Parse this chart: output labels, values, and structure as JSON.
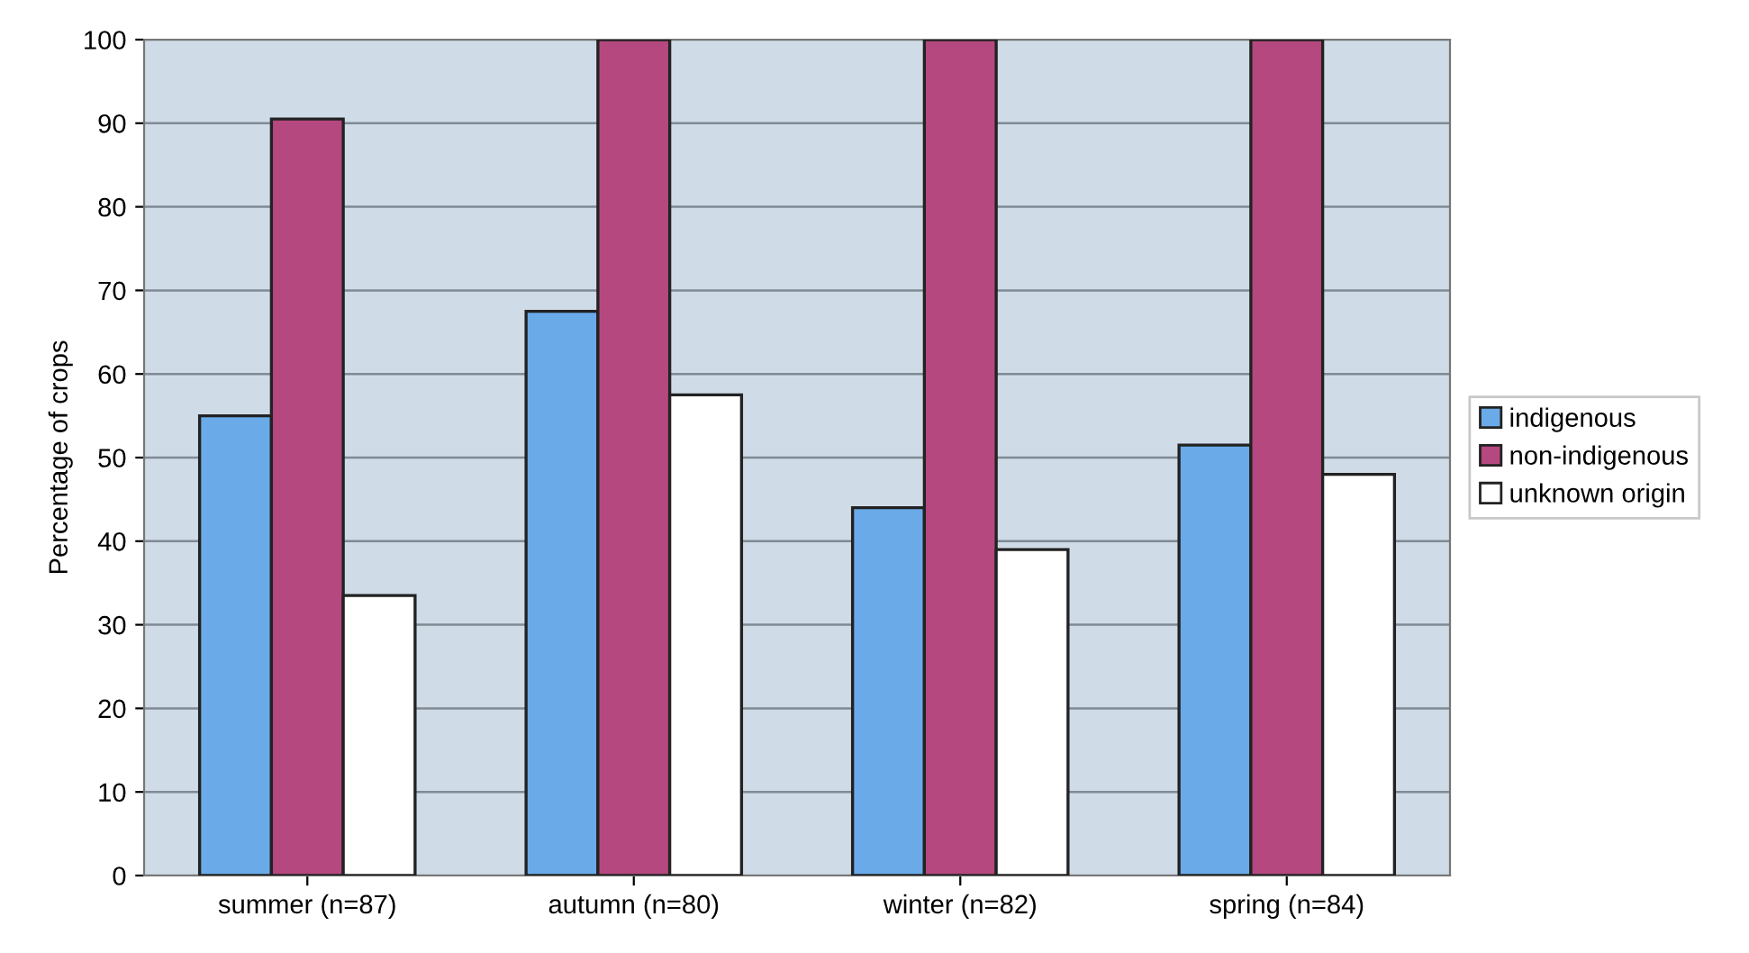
{
  "chart_data": {
    "type": "bar",
    "ylabel": "Percentage of crops",
    "categories": [
      "summer (n=87)",
      "autumn (n=80)",
      "winter (n=82)",
      "spring (n=84)"
    ],
    "series": [
      {
        "name": "indigenous",
        "color": "#6aaae8",
        "values": [
          55,
          67.5,
          44,
          51.5
        ]
      },
      {
        "name": "non-indigenous",
        "color": "#b5487f",
        "values": [
          90.5,
          100,
          100,
          100
        ]
      },
      {
        "name": "unknown origin",
        "color": "#ffffff",
        "values": [
          33.5,
          57.5,
          39,
          48
        ]
      }
    ],
    "ylim": [
      0,
      100
    ],
    "yticks": [
      0,
      10,
      20,
      30,
      40,
      50,
      60,
      70,
      80,
      90,
      100
    ],
    "grid": "y",
    "legend": "right"
  }
}
